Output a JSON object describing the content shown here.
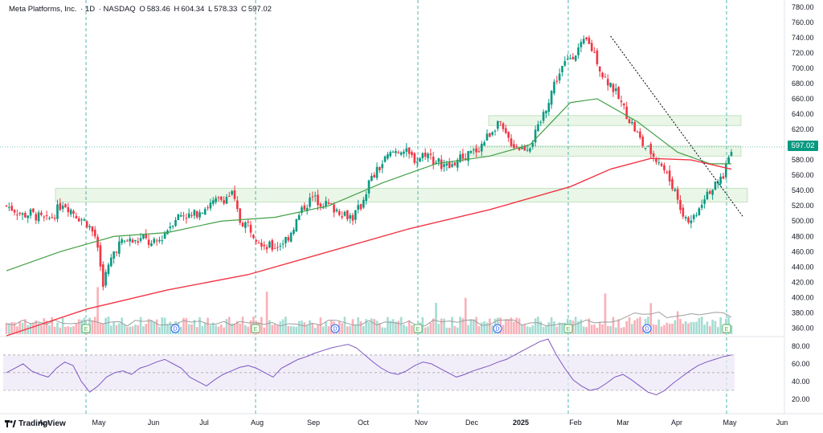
{
  "header": {
    "symbol": "Meta Platforms, Inc.",
    "interval": "1D",
    "exchange": "NASDAQ",
    "o_label": "O",
    "o_value": "583.46",
    "h_label": "H",
    "h_value": "604.34",
    "l_label": "L",
    "l_value": "578.33",
    "c_label": "C",
    "c_value": "597.02"
  },
  "branding": {
    "name": "TradingView"
  },
  "colors": {
    "up": "#089981",
    "down": "#f23645",
    "sma50": "#43a047",
    "sma200": "#f23645",
    "rsi": "#7e57c2",
    "zone": "#e6f4e2",
    "zone_border": "#a5d6a7",
    "earnings": "#4caf50",
    "dividend": "#2962ff"
  },
  "chart_data": {
    "type": "candlestick",
    "price_axis": {
      "ticks": [
        "360.00",
        "380.00",
        "400.00",
        "420.00",
        "440.00",
        "460.00",
        "480.00",
        "500.00",
        "520.00",
        "540.00",
        "560.00",
        "580.00",
        "600.00",
        "620.00",
        "640.00",
        "660.00",
        "680.00",
        "700.00",
        "720.00",
        "740.00",
        "760.00",
        "780.00"
      ],
      "range": [
        350,
        785
      ]
    },
    "last_price": "597.02",
    "time_axis": [
      "Apr",
      "May",
      "Jun",
      "Jul",
      "Aug",
      "Sep",
      "Oct",
      "Nov",
      "Dec",
      "2025",
      "Feb",
      "Mar",
      "Apr",
      "May",
      "Jun"
    ],
    "rsi_axis": {
      "ticks": [
        "20.00",
        "40.00",
        "60.00",
        "80.00"
      ],
      "range": [
        10,
        88
      ],
      "band": [
        30,
        70
      ]
    },
    "approx_closes": [
      [
        0,
        520
      ],
      [
        3,
        515
      ],
      [
        6,
        508
      ],
      [
        9,
        510
      ],
      [
        12,
        505
      ],
      [
        15,
        500
      ],
      [
        18,
        510
      ],
      [
        21,
        525
      ],
      [
        24,
        515
      ],
      [
        27,
        505
      ],
      [
        30,
        498
      ],
      [
        33,
        480
      ],
      [
        35,
        440
      ],
      [
        36,
        420
      ],
      [
        38,
        440
      ],
      [
        40,
        460
      ],
      [
        42,
        470
      ],
      [
        45,
        475
      ],
      [
        48,
        472
      ],
      [
        51,
        478
      ],
      [
        54,
        468
      ],
      [
        57,
        475
      ],
      [
        60,
        490
      ],
      [
        63,
        505
      ],
      [
        66,
        510
      ],
      [
        69,
        505
      ],
      [
        72,
        515
      ],
      [
        75,
        520
      ],
      [
        78,
        525
      ],
      [
        81,
        530
      ],
      [
        84,
        535
      ],
      [
        87,
        500
      ],
      [
        90,
        495
      ],
      [
        93,
        480
      ],
      [
        96,
        470
      ],
      [
        99,
        465
      ],
      [
        102,
        470
      ],
      [
        105,
        480
      ],
      [
        108,
        500
      ],
      [
        111,
        520
      ],
      [
        114,
        530
      ],
      [
        117,
        525
      ],
      [
        120,
        520
      ],
      [
        123,
        515
      ],
      [
        126,
        510
      ],
      [
        129,
        505
      ],
      [
        132,
        520
      ],
      [
        135,
        550
      ],
      [
        138,
        565
      ],
      [
        141,
        580
      ],
      [
        144,
        590
      ],
      [
        147,
        595
      ],
      [
        150,
        585
      ],
      [
        153,
        580
      ],
      [
        156,
        590
      ],
      [
        159,
        580
      ],
      [
        162,
        575
      ],
      [
        165,
        570
      ],
      [
        168,
        580
      ],
      [
        171,
        585
      ],
      [
        174,
        590
      ],
      [
        177,
        600
      ],
      [
        180,
        615
      ],
      [
        183,
        630
      ],
      [
        186,
        610
      ],
      [
        189,
        600
      ],
      [
        192,
        595
      ],
      [
        195,
        600
      ],
      [
        198,
        620
      ],
      [
        201,
        650
      ],
      [
        204,
        680
      ],
      [
        207,
        700
      ],
      [
        210,
        715
      ],
      [
        213,
        725
      ],
      [
        216,
        735
      ],
      [
        219,
        720
      ],
      [
        222,
        690
      ],
      [
        225,
        680
      ],
      [
        228,
        660
      ],
      [
        231,
        640
      ],
      [
        234,
        620
      ],
      [
        237,
        600
      ],
      [
        240,
        590
      ],
      [
        243,
        580
      ],
      [
        246,
        560
      ],
      [
        249,
        540
      ],
      [
        252,
        510
      ],
      [
        255,
        500
      ],
      [
        258,
        520
      ],
      [
        261,
        540
      ],
      [
        264,
        545
      ],
      [
        267,
        560
      ],
      [
        270,
        597
      ]
    ],
    "sma50": [
      [
        0,
        435
      ],
      [
        20,
        460
      ],
      [
        40,
        480
      ],
      [
        60,
        485
      ],
      [
        80,
        500
      ],
      [
        100,
        505
      ],
      [
        120,
        520
      ],
      [
        140,
        550
      ],
      [
        160,
        575
      ],
      [
        180,
        585
      ],
      [
        195,
        600
      ],
      [
        210,
        655
      ],
      [
        220,
        660
      ],
      [
        235,
        630
      ],
      [
        250,
        590
      ],
      [
        262,
        575
      ],
      [
        270,
        575
      ]
    ],
    "sma200": [
      [
        0,
        350
      ],
      [
        30,
        385
      ],
      [
        60,
        410
      ],
      [
        90,
        430
      ],
      [
        120,
        460
      ],
      [
        150,
        490
      ],
      [
        180,
        515
      ],
      [
        210,
        545
      ],
      [
        225,
        568
      ],
      [
        240,
        582
      ],
      [
        255,
        580
      ],
      [
        270,
        568
      ]
    ],
    "support_zones": [
      {
        "low": 525,
        "high": 543
      },
      {
        "low": 585,
        "high": 598
      },
      {
        "low": 625,
        "high": 638
      }
    ],
    "trendline": {
      "from": [
        225,
        742
      ],
      "to": [
        270,
        505
      ]
    },
    "earnings_markers": 8,
    "dividend_markers": 6,
    "rsi_series": [
      50,
      55,
      60,
      52,
      48,
      45,
      55,
      62,
      58,
      40,
      28,
      35,
      45,
      50,
      52,
      48,
      55,
      58,
      62,
      65,
      60,
      55,
      45,
      40,
      35,
      42,
      48,
      52,
      56,
      58,
      55,
      50,
      45,
      55,
      60,
      65,
      68,
      72,
      75,
      78,
      80,
      82,
      78,
      70,
      62,
      55,
      50,
      48,
      52,
      58,
      62,
      60,
      55,
      50,
      45,
      48,
      52,
      55,
      58,
      62,
      65,
      70,
      75,
      80,
      85,
      88,
      70,
      55,
      42,
      35,
      30,
      32,
      38,
      45,
      48,
      42,
      35,
      28,
      25,
      30,
      38,
      45,
      52,
      58,
      62,
      65,
      68,
      70
    ]
  }
}
